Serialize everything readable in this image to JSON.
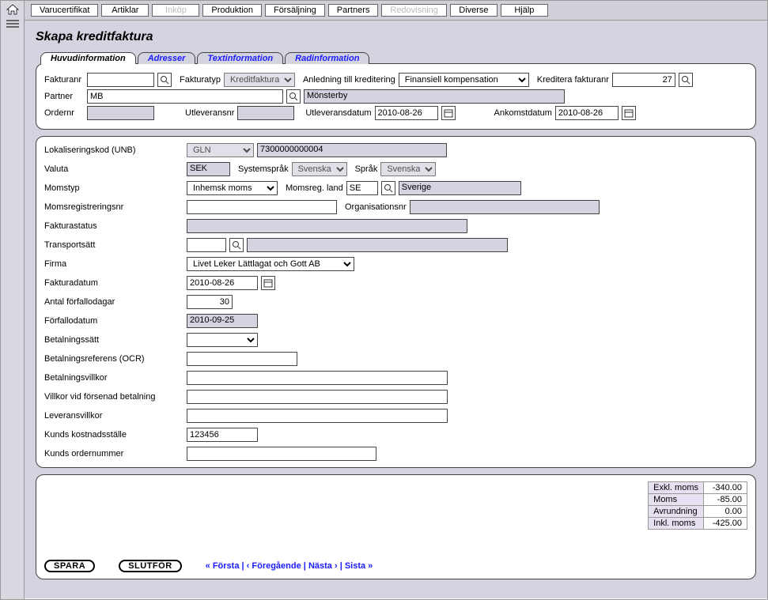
{
  "topmenu": [
    {
      "label": "Varucertifikat",
      "disabled": false
    },
    {
      "label": "Artiklar",
      "disabled": false
    },
    {
      "label": "Inköp",
      "disabled": true
    },
    {
      "label": "Produktion",
      "disabled": false
    },
    {
      "label": "Försäljning",
      "disabled": false
    },
    {
      "label": "Partners",
      "disabled": false
    },
    {
      "label": "Redovisning",
      "disabled": true
    },
    {
      "label": "Diverse",
      "disabled": false
    },
    {
      "label": "Hjälp",
      "disabled": false
    }
  ],
  "page": {
    "title": "Skapa kreditfaktura"
  },
  "tabs": [
    {
      "label": "Huvudinformation",
      "active": true
    },
    {
      "label": "Adresser",
      "active": false
    },
    {
      "label": "Textinformation",
      "active": false
    },
    {
      "label": "Radinformation",
      "active": false
    }
  ],
  "header": {
    "fakturanr_label": "Fakturanr",
    "fakturanr_value": "",
    "fakturatyp_label": "Fakturatyp",
    "fakturatyp_value": "Kreditfaktura",
    "anledning_label": "Anledning till kreditering",
    "anledning_value": "Finansiell kompensation",
    "kreditera_label": "Kreditera fakturanr",
    "kreditera_value": "27",
    "partner_label": "Partner",
    "partner_code": "MB",
    "partner_name": "Mönsterby",
    "ordernr_label": "Ordernr",
    "ordernr_value": "",
    "utleveransnr_label": "Utleveransnr",
    "utleveransnr_value": "",
    "utleveransdatum_label": "Utleveransdatum",
    "utleveransdatum_value": "2010-08-26",
    "ankomstdatum_label": "Ankomstdatum",
    "ankomstdatum_value": "2010-08-26"
  },
  "main": {
    "lokaliseringskod_label": "Lokaliseringskod (UNB)",
    "lokaliseringskod_type": "GLN",
    "lokaliseringskod_value": "7300000000004",
    "valuta_label": "Valuta",
    "valuta_value": "SEK",
    "systemsprak_label": "Systemspråk",
    "systemsprak_value": "Svenska",
    "sprak_label": "Språk",
    "sprak_value": "Svenska",
    "momstyp_label": "Momstyp",
    "momstyp_value": "Inhemsk moms",
    "momsregland_label": "Momsreg. land",
    "momsregland_code": "SE",
    "momsregland_name": "Sverige",
    "momsregnr_label": "Momsregistreringsnr",
    "momsregnr_value": "",
    "orgnr_label": "Organisationsnr",
    "orgnr_value": "",
    "fakturastatus_label": "Fakturastatus",
    "fakturastatus_value": "",
    "transportsatt_label": "Transportsätt",
    "transportsatt_code": "",
    "transportsatt_name": "",
    "firma_label": "Firma",
    "firma_value": "Livet Leker Lättlagat och Gott AB",
    "fakturadatum_label": "Fakturadatum",
    "fakturadatum_value": "2010-08-26",
    "antal_forfall_label": "Antal förfallodagar",
    "antal_forfall_value": "30",
    "forfallodatum_label": "Förfallodatum",
    "forfallodatum_value": "2010-09-25",
    "betalningssatt_label": "Betalningssätt",
    "betalningssatt_value": "",
    "betalningsref_label": "Betalningsreferens (OCR)",
    "betalningsref_value": "",
    "betalningsvillkor_label": "Betalningsvillkor",
    "betalningsvillkor_value": "",
    "villkor_forsenad_label": "Villkor vid försenad betalning",
    "villkor_forsenad_value": "",
    "leveransvillkor_label": "Leveransvillkor",
    "leveransvillkor_value": "",
    "kunds_kostnad_label": "Kunds kostnadsställe",
    "kunds_kostnad_value": "123456",
    "kunds_ordernr_label": "Kunds ordernummer",
    "kunds_ordernr_value": ""
  },
  "totals": {
    "exkl_label": "Exkl. moms",
    "exkl_value": "-340.00",
    "moms_label": "Moms",
    "moms_value": "-85.00",
    "avrund_label": "Avrundning",
    "avrund_value": "0.00",
    "inkl_label": "Inkl. moms",
    "inkl_value": "-425.00"
  },
  "footer": {
    "spara": "SPARA",
    "slutfor": "SLUTFÖR",
    "nav_first": "« Första",
    "nav_prev": "‹ Föregående",
    "nav_next": "Nästa ›",
    "nav_last": "Sista »"
  }
}
